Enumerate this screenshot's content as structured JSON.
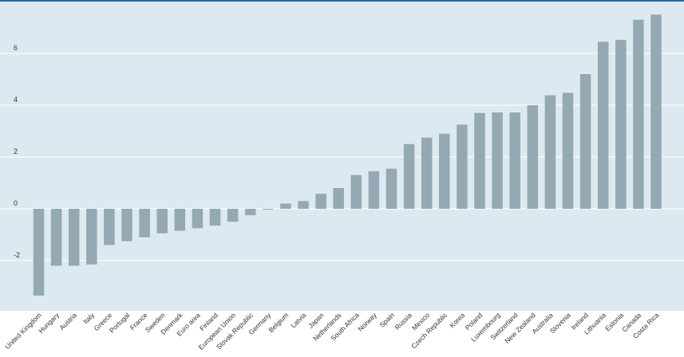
{
  "colors": {
    "plot_background": "#dde9f0",
    "bar": "#94a9b4",
    "gridline": "#ffffff",
    "top_rule": "#1f6aa5",
    "zero_line": "#ffffff"
  },
  "chart_data": {
    "type": "bar",
    "title": "",
    "xlabel": "",
    "ylabel": "",
    "ylim": [
      -4,
      7.5
    ],
    "yticks": [
      -2,
      0,
      2,
      4,
      6
    ],
    "grid": true,
    "categories": [
      "United Kingdom",
      "Hungary",
      "Austria",
      "Italy",
      "Greece",
      "Portugal",
      "France",
      "Sweden",
      "Denmark",
      "Euro area",
      "Finland",
      "European Union",
      "Slovak Republic",
      "Germany",
      "Belgium",
      "Latvia",
      "Japan",
      "Netherlands",
      "South Africa",
      "Norway",
      "Spain",
      "Russia",
      "Mexico",
      "Czech Republic",
      "Korea",
      "Poland",
      "Luxembourg",
      "Switzerland",
      "New Zealand",
      "Australia",
      "Slovenia",
      "Ireland",
      "Lithuania",
      "Estonia",
      "Canada",
      "Costa Rica"
    ],
    "values": [
      -3.35,
      -2.2,
      -2.2,
      -2.15,
      -1.4,
      -1.25,
      -1.1,
      -0.95,
      -0.85,
      -0.75,
      -0.65,
      -0.5,
      -0.25,
      -0.03,
      0.2,
      0.3,
      0.58,
      0.8,
      1.3,
      1.45,
      1.55,
      2.5,
      2.75,
      2.9,
      3.25,
      3.7,
      3.72,
      3.72,
      4.0,
      4.38,
      4.48,
      5.2,
      6.45,
      6.52,
      7.3,
      7.5
    ]
  }
}
